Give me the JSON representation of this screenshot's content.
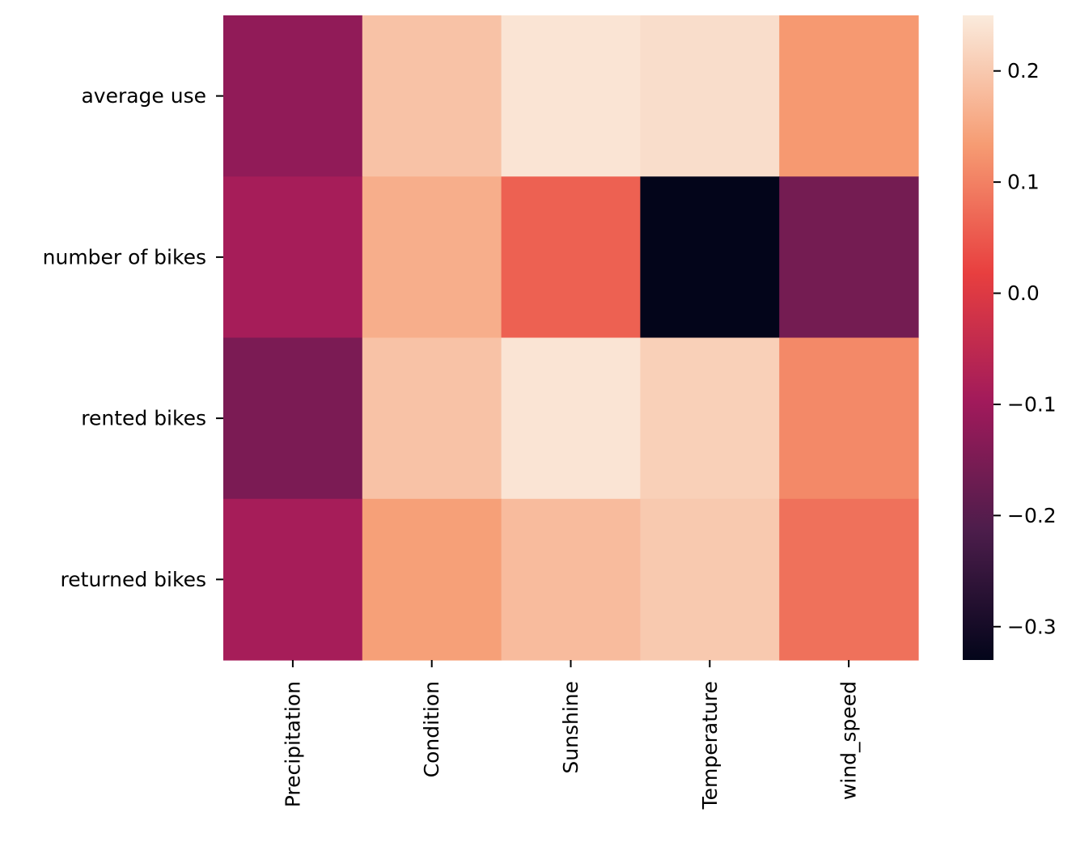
{
  "chart_data": {
    "type": "heatmap",
    "x_categories": [
      "Precipitation",
      "Condition",
      "Sunshine",
      "Temperature",
      "wind_speed"
    ],
    "y_categories": [
      "average use",
      "number of bikes",
      "rented bikes",
      "returned bikes"
    ],
    "values": [
      [
        -0.12,
        0.19,
        0.24,
        0.23,
        0.13
      ],
      [
        -0.09,
        0.16,
        0.06,
        -0.33,
        -0.16
      ],
      [
        -0.15,
        0.19,
        0.24,
        0.21,
        0.11
      ],
      [
        -0.09,
        0.14,
        0.18,
        0.2,
        0.08
      ]
    ],
    "colorbar": {
      "min": -0.33,
      "max": 0.25,
      "ticks": [
        0.2,
        0.1,
        0.0,
        -0.1,
        -0.2,
        -0.3
      ],
      "tick_labels": [
        "0.2",
        "0.1",
        "0.0",
        "−0.1",
        "−0.2",
        "−0.3"
      ]
    },
    "colormap": "rocket",
    "colormap_stops": [
      "#03051a",
      "#4c1d4b",
      "#a11a5b",
      "#e83f3f",
      "#f69c73",
      "#faebdd"
    ],
    "title": "",
    "xlabel": "",
    "ylabel": ""
  }
}
